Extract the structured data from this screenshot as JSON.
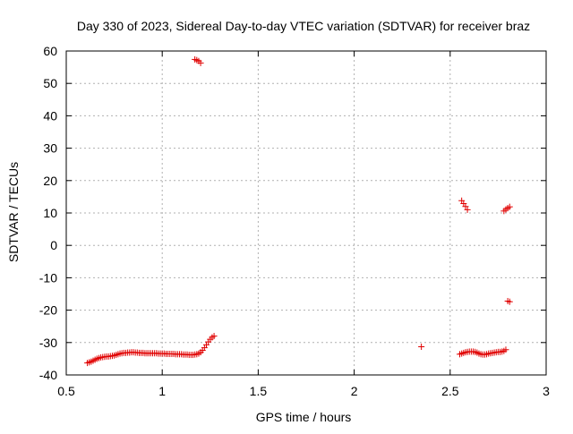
{
  "chart_data": {
    "type": "scatter",
    "title": "Day 330 of 2023, Sidereal Day-to-day VTEC variation (SDTVAR) for receiver braz",
    "xlabel": "GPS time / hours",
    "ylabel": "SDTVAR / TECUs",
    "xlim": [
      0.5,
      3
    ],
    "ylim": [
      -40,
      60
    ],
    "xticks": [
      0.5,
      1,
      1.5,
      2,
      2.5,
      3
    ],
    "xtick_labels": [
      "0.5",
      "1",
      "1.5",
      "2",
      "2.5",
      "3"
    ],
    "yticks": [
      -40,
      -30,
      -20,
      -10,
      0,
      10,
      20,
      30,
      40,
      50,
      60
    ],
    "ytick_labels": [
      "-40",
      "-30",
      "-20",
      "-10",
      "0",
      "10",
      "20",
      "30",
      "40",
      "50",
      "60"
    ],
    "grid": true,
    "marker": "+",
    "marker_color": "#e00000",
    "series": [
      {
        "name": "SDTVAR",
        "x": [
          0.61,
          0.62,
          0.63,
          0.64,
          0.65,
          0.66,
          0.67,
          0.68,
          0.69,
          0.7,
          0.71,
          0.72,
          0.73,
          0.74,
          0.75,
          0.76,
          0.77,
          0.78,
          0.79,
          0.8,
          0.81,
          0.82,
          0.83,
          0.84,
          0.85,
          0.86,
          0.87,
          0.88,
          0.89,
          0.9,
          0.91,
          0.92,
          0.93,
          0.94,
          0.95,
          0.96,
          0.97,
          0.98,
          0.99,
          1.0,
          1.01,
          1.02,
          1.03,
          1.04,
          1.05,
          1.06,
          1.07,
          1.08,
          1.09,
          1.1,
          1.11,
          1.12,
          1.13,
          1.14,
          1.15,
          1.16,
          1.17,
          1.18,
          1.19,
          1.2,
          1.21,
          1.22,
          1.23,
          1.24,
          1.25,
          1.26,
          1.27,
          1.17,
          1.18,
          1.19,
          1.2,
          2.35,
          2.55,
          2.56,
          2.57,
          2.58,
          2.59,
          2.6,
          2.61,
          2.62,
          2.63,
          2.64,
          2.65,
          2.66,
          2.67,
          2.68,
          2.69,
          2.7,
          2.71,
          2.72,
          2.73,
          2.74,
          2.75,
          2.76,
          2.77,
          2.78,
          2.79,
          2.56,
          2.57,
          2.58,
          2.59,
          2.78,
          2.79,
          2.8,
          2.81,
          2.8,
          2.81
        ],
        "y": [
          -36.3,
          -36.1,
          -35.9,
          -35.6,
          -35.3,
          -35.0,
          -34.8,
          -34.6,
          -34.5,
          -34.4,
          -34.3,
          -34.3,
          -34.2,
          -34.1,
          -34.0,
          -33.8,
          -33.6,
          -33.4,
          -33.3,
          -33.2,
          -33.2,
          -33.1,
          -33.1,
          -33.0,
          -33.0,
          -33.1,
          -33.1,
          -33.2,
          -33.2,
          -33.2,
          -33.3,
          -33.3,
          -33.3,
          -33.3,
          -33.3,
          -33.3,
          -33.3,
          -33.4,
          -33.4,
          -33.4,
          -33.4,
          -33.5,
          -33.5,
          -33.5,
          -33.5,
          -33.5,
          -33.6,
          -33.6,
          -33.6,
          -33.6,
          -33.7,
          -33.7,
          -33.7,
          -33.8,
          -33.8,
          -33.8,
          -33.7,
          -33.6,
          -33.4,
          -33.0,
          -32.4,
          -31.6,
          -30.7,
          -29.8,
          -29.0,
          -28.4,
          -28.0,
          57.4,
          57.2,
          56.9,
          56.3,
          -31.3,
          -33.6,
          -33.4,
          -33.2,
          -33.0,
          -32.9,
          -32.8,
          -32.8,
          -32.8,
          -32.9,
          -33.1,
          -33.4,
          -33.6,
          -33.7,
          -33.7,
          -33.6,
          -33.4,
          -33.3,
          -33.2,
          -33.1,
          -33.0,
          -32.9,
          -32.9,
          -32.8,
          -32.6,
          -32.2,
          13.8,
          12.9,
          12.0,
          11.0,
          10.6,
          11.1,
          11.5,
          11.9,
          -17.2,
          -17.4
        ]
      }
    ]
  }
}
